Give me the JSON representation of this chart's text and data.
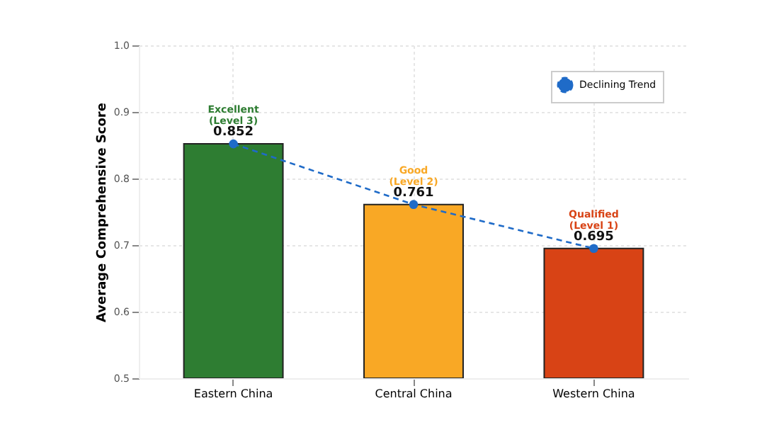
{
  "chart_data": {
    "type": "bar",
    "categories": [
      "Eastern China",
      "Central China",
      "Western China"
    ],
    "series": [
      {
        "type": "bar",
        "values": [
          0.852,
          0.761,
          0.695
        ],
        "value_labels": [
          "0.852",
          "0.761",
          "0.695"
        ],
        "colors": [
          "#2e7d32",
          "#f9a825",
          "#d84315"
        ]
      },
      {
        "type": "line",
        "name": "Declining Trend",
        "color": "#1f6bc8",
        "values": [
          0.852,
          0.761,
          0.695
        ],
        "marker": "circle",
        "line_style": "dashed"
      }
    ],
    "ylabel": "Average Comprehensive Score",
    "ylim": [
      0.5,
      1.0
    ],
    "yticks": [
      0.5,
      0.6,
      0.7,
      0.8,
      0.9,
      {
        "value": 1,
        "label": "1.0"
      }
    ],
    "grid": true,
    "legend": "top right",
    "annotations": [
      {
        "text": "Excellent\n(Level 3)",
        "x": "Eastern China",
        "y": 0.852
      },
      {
        "text": "Good\n(Level 2)",
        "x": "Central China",
        "y": 0.761
      },
      {
        "text": "Qualified\n(Level 1)",
        "x": "Western China",
        "y": 0.695
      }
    ]
  }
}
